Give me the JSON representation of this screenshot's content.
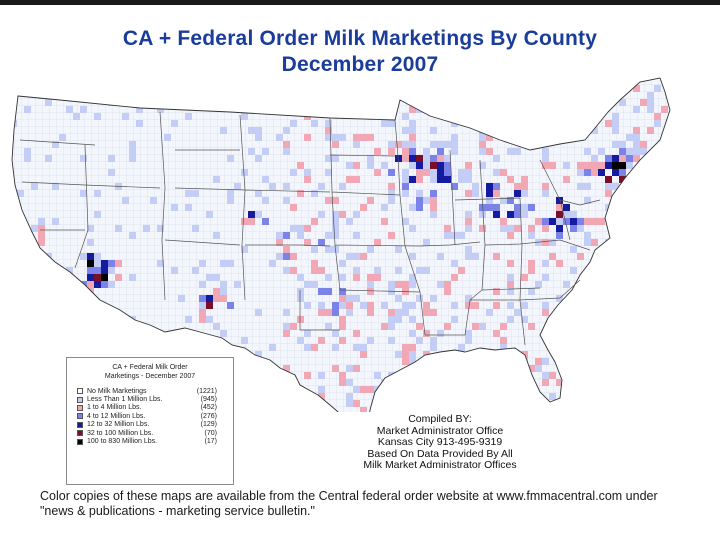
{
  "header": {
    "title_line1": "CA  +  Federal Order Milk Marketings By County",
    "title_line2": "December 2007"
  },
  "legend": {
    "title_line1": "CA + Federal Milk Order",
    "title_line2": "Marketings - December 2007",
    "categories": [
      {
        "label": "No Milk Marketings",
        "count": "(1221)",
        "color": "#ffffff"
      },
      {
        "label": "Less Than 1 Million Lbs.",
        "count": "(945)",
        "color": "#c3cdf5"
      },
      {
        "label": "1 to 4 Million Lbs.",
        "count": "(452)",
        "color": "#f2a8b4"
      },
      {
        "label": "4 to 12 Million Lbs.",
        "count": "(276)",
        "color": "#7b82e8"
      },
      {
        "label": "12 to 32 Million Lbs.",
        "count": "(129)",
        "color": "#141b9e"
      },
      {
        "label": "32 to 100 Million Lbs.",
        "count": "(70)",
        "color": "#7a0f2a"
      },
      {
        "label": "100 to 830 Million Lbs.",
        "count": "(17)",
        "color": "#000000"
      }
    ]
  },
  "credits": {
    "line1": "Compiled BY:",
    "line2": "Market Administrator Office",
    "line3": "Kansas City 913-495-9319",
    "line4": "Based On Data Provided By All",
    "line5": "Milk Market Administrator Offices"
  },
  "footer": {
    "line1": "Color copies of these maps are available from the Central federal order website at www.fmmacentral.com under",
    "line2": "\"news & publications - marketing service bulletin.\""
  }
}
